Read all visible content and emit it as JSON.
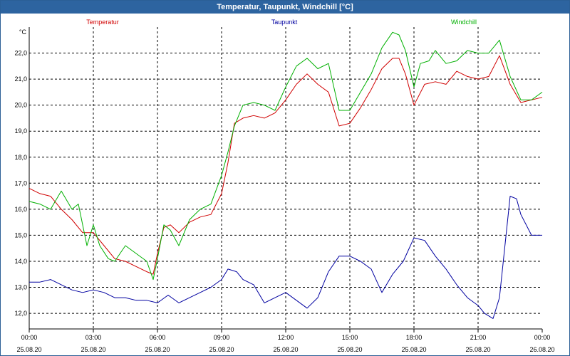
{
  "window": {
    "title": "Temperatur, Taupunkt, Windchill [°C]"
  },
  "chart_data": {
    "type": "line",
    "title": "Temperatur, Taupunkt, Windchill [°C]",
    "ylabel": "°C",
    "ylim": [
      11.4,
      23.0
    ],
    "xlim": [
      0,
      24
    ],
    "yticks": [
      12.0,
      13.0,
      14.0,
      15.0,
      16.0,
      17.0,
      18.0,
      19.0,
      20.0,
      21.0,
      22.0
    ],
    "ytick_labels": [
      "12,0",
      "13,0",
      "14,0",
      "15,0",
      "16,0",
      "17,0",
      "18,0",
      "19,0",
      "20,0",
      "21,0",
      "22,0"
    ],
    "xticks": [
      {
        "h": 0,
        "time": "00:00",
        "date": "25.08.20"
      },
      {
        "h": 3,
        "time": "03:00",
        "date": "25.08.20"
      },
      {
        "h": 6,
        "time": "06:00",
        "date": "25.08.20"
      },
      {
        "h": 9,
        "time": "09:00",
        "date": "25.08.20"
      },
      {
        "h": 12,
        "time": "12:00",
        "date": "25.08.20"
      },
      {
        "h": 15,
        "time": "15:00",
        "date": "25.08.20"
      },
      {
        "h": 18,
        "time": "18:00",
        "date": "25.08.20"
      },
      {
        "h": 21,
        "time": "21:00",
        "date": "25.08.20"
      },
      {
        "h": 24,
        "time": "00:00",
        "date": "26.08.20"
      }
    ],
    "grid": true,
    "series": [
      {
        "name": "Temperatur",
        "color": "#d00000",
        "x": [
          0,
          0.5,
          1,
          1.5,
          2,
          2.5,
          3,
          3.5,
          4,
          4.5,
          5,
          5.5,
          5.8,
          6,
          6.3,
          6.6,
          7,
          7.5,
          8,
          8.5,
          9,
          9.3,
          9.6,
          10,
          10.5,
          11,
          11.5,
          12,
          12.5,
          13,
          13.5,
          14,
          14.5,
          15,
          15.5,
          16,
          16.5,
          17,
          17.3,
          17.6,
          18,
          18.5,
          19,
          19.5,
          20,
          20.5,
          21,
          21.5,
          22,
          22.5,
          23,
          23.5,
          24
        ],
        "values": [
          16.8,
          16.6,
          16.5,
          16.0,
          15.6,
          15.1,
          15.1,
          14.6,
          14.1,
          14.0,
          13.8,
          13.6,
          13.5,
          14.3,
          15.3,
          15.4,
          15.1,
          15.5,
          15.7,
          15.8,
          16.6,
          17.8,
          19.3,
          19.5,
          19.6,
          19.5,
          19.7,
          20.2,
          20.8,
          21.2,
          20.8,
          20.5,
          19.2,
          19.3,
          19.9,
          20.6,
          21.4,
          21.8,
          21.8,
          21.2,
          20.0,
          20.8,
          20.9,
          20.8,
          21.3,
          21.1,
          21.0,
          21.1,
          21.9,
          20.8,
          20.1,
          20.2,
          20.3
        ]
      },
      {
        "name": "Taupunkt",
        "color": "#0000a0",
        "x": [
          0,
          0.5,
          1,
          1.5,
          2,
          2.5,
          3,
          3.5,
          4,
          4.5,
          5,
          5.5,
          6,
          6.5,
          7,
          7.5,
          8,
          8.5,
          9,
          9.3,
          9.7,
          10,
          10.5,
          11,
          11.5,
          12,
          12.5,
          13,
          13.5,
          14,
          14.5,
          15,
          15.5,
          16,
          16.5,
          17,
          17.5,
          18,
          18.5,
          19,
          19.5,
          20,
          20.5,
          21,
          21.3,
          21.7,
          22,
          22.5,
          22.8,
          23,
          23.5,
          24
        ],
        "values": [
          13.2,
          13.2,
          13.3,
          13.1,
          12.9,
          12.8,
          12.9,
          12.8,
          12.6,
          12.6,
          12.5,
          12.5,
          12.4,
          12.7,
          12.4,
          12.6,
          12.8,
          13.0,
          13.3,
          13.7,
          13.6,
          13.3,
          13.1,
          12.4,
          12.6,
          12.8,
          12.5,
          12.2,
          12.6,
          13.6,
          14.2,
          14.2,
          14.0,
          13.7,
          12.8,
          13.5,
          14.0,
          14.9,
          14.8,
          14.2,
          13.7,
          13.1,
          12.6,
          12.3,
          12.0,
          11.8,
          12.6,
          16.5,
          16.4,
          15.8,
          15.0,
          15.0
        ]
      },
      {
        "name": "Windchill",
        "color": "#00b000",
        "x": [
          0,
          0.5,
          1,
          1.5,
          2,
          2.3,
          2.7,
          3,
          3.3,
          3.7,
          4,
          4.5,
          5,
          5.5,
          5.8,
          6,
          6.3,
          6.6,
          7,
          7.5,
          8,
          8.5,
          9,
          9.3,
          9.6,
          10,
          10.5,
          11,
          11.5,
          12,
          12.5,
          13,
          13.5,
          14,
          14.5,
          15,
          15.5,
          16,
          16.5,
          17,
          17.3,
          17.6,
          18,
          18.3,
          18.7,
          19,
          19.5,
          20,
          20.5,
          21,
          21.5,
          22,
          22.5,
          23,
          23.5,
          24
        ],
        "values": [
          16.3,
          16.2,
          16.0,
          16.7,
          16.0,
          16.2,
          14.6,
          15.4,
          14.6,
          14.1,
          14.0,
          14.6,
          14.3,
          14.0,
          13.3,
          14.1,
          15.4,
          15.2,
          14.6,
          15.6,
          16.0,
          16.2,
          17.3,
          18.2,
          19.2,
          20.0,
          20.1,
          20.0,
          19.8,
          20.7,
          21.5,
          21.8,
          21.4,
          21.6,
          19.8,
          19.8,
          20.5,
          21.2,
          22.2,
          22.8,
          22.7,
          22.1,
          20.7,
          21.6,
          21.7,
          22.1,
          21.6,
          21.7,
          22.1,
          22.0,
          22.0,
          22.5,
          21.1,
          20.2,
          20.2,
          20.5
        ]
      }
    ]
  }
}
